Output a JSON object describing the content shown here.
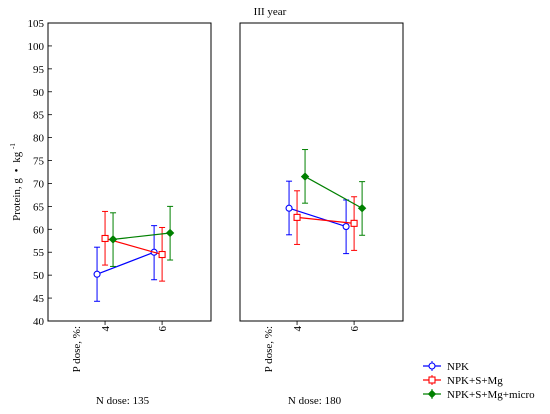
{
  "chart_data": {
    "type": "line",
    "title": "III year",
    "ylabel_main": "Protein, g",
    "ylabel_bullet": "•",
    "ylabel_unit": "kg",
    "ylabel_exp": "-1",
    "ylim": [
      40,
      105
    ],
    "yticks": [
      40,
      45,
      50,
      55,
      60,
      65,
      70,
      75,
      80,
      85,
      90,
      95,
      100,
      105
    ],
    "x_axis_label": "P dose, %:",
    "grid": false,
    "legend_position": "bottom-right",
    "categories": [
      "4",
      "6"
    ],
    "panels": [
      {
        "label": "N dose: 135",
        "series": [
          {
            "name": "NPK",
            "values": [
              50.2,
              55.0
            ],
            "lower": [
              44.3,
              49.0
            ],
            "upper": [
              56.1,
              60.8
            ]
          },
          {
            "name": "NPK+S+Mg",
            "values": [
              58.0,
              54.5
            ],
            "lower": [
              52.2,
              48.7
            ],
            "upper": [
              63.9,
              60.4
            ]
          },
          {
            "name": "NPK+S+Mg+micro",
            "values": [
              57.8,
              59.2
            ],
            "lower": [
              51.9,
              53.3
            ],
            "upper": [
              63.6,
              65.0
            ]
          }
        ]
      },
      {
        "label": "N dose: 180",
        "series": [
          {
            "name": "NPK",
            "values": [
              64.6,
              60.6
            ],
            "lower": [
              58.8,
              54.7
            ],
            "upper": [
              70.5,
              66.4
            ]
          },
          {
            "name": "NPK+S+Mg",
            "values": [
              62.6,
              61.3
            ],
            "lower": [
              56.7,
              55.4
            ],
            "upper": [
              68.4,
              67.1
            ]
          },
          {
            "name": "NPK+S+Mg+micro",
            "values": [
              71.5,
              64.6
            ],
            "lower": [
              65.7,
              58.7
            ],
            "upper": [
              77.4,
              70.4
            ]
          }
        ]
      }
    ],
    "series_styles": [
      {
        "name": "NPK",
        "color": "#0000ff",
        "marker": "circle"
      },
      {
        "name": "NPK+S+Mg",
        "color": "#ff0000",
        "marker": "square"
      },
      {
        "name": "NPK+S+Mg+micro",
        "color": "#008000",
        "marker": "diamond"
      }
    ]
  }
}
